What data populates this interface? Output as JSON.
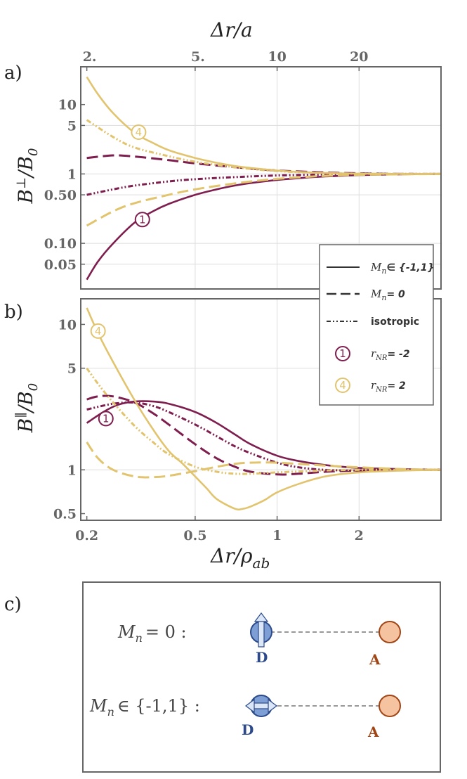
{
  "panels": {
    "a": "a)",
    "b": "b)",
    "c": "c)"
  },
  "colors": {
    "purple": "#7e1e4e",
    "gold": "#e2c46e",
    "frame": "#666666",
    "grid": "#dddddd",
    "donor": "#2c4a8a",
    "donor_fill": "#7d9fd6",
    "acceptor": "#a04515",
    "acceptor_fill": "#f6c3a0"
  },
  "chart_data": [
    {
      "id": "panel_a",
      "type": "line",
      "title": "",
      "xlabel": "Δr/ρ_ab",
      "top_xlabel": "Δr/a",
      "ylabel": "B⊥/B0",
      "xscale": "log",
      "yscale": "log",
      "xlim": [
        0.19,
        4.0
      ],
      "ylim": [
        0.022,
        35
      ],
      "top_ticks": [
        {
          "label": "2.",
          "x": 0.2
        },
        {
          "label": "5.",
          "x": 0.5
        },
        {
          "label": "10",
          "x": 1.0
        },
        {
          "label": "20",
          "x": 2.0
        }
      ],
      "ytick_labels": [
        "10",
        "5",
        "1",
        "0.50",
        "0.10",
        "0.05"
      ],
      "yticks": [
        10,
        5,
        1,
        0.5,
        0.1,
        0.05
      ],
      "x_grid": [
        0.5,
        1,
        2
      ],
      "y_grid": [
        5,
        1,
        0.5,
        0.1,
        0.05
      ],
      "series": [
        {
          "name": "M_n ∈ {-1,1}, r_NR = -2",
          "color": "purple",
          "dash": "solid",
          "x": [
            0.2,
            0.22,
            0.25,
            0.3,
            0.35,
            0.4,
            0.5,
            0.6,
            0.7,
            0.8,
            1.0,
            1.2,
            1.5,
            2.0,
            3.0,
            4.0
          ],
          "y": [
            0.03,
            0.055,
            0.1,
            0.2,
            0.29,
            0.37,
            0.5,
            0.6,
            0.68,
            0.74,
            0.82,
            0.87,
            0.92,
            0.96,
            0.99,
            1.0
          ]
        },
        {
          "name": "M_n = 0, r_NR = -2",
          "color": "purple",
          "dash": "dash",
          "x": [
            0.2,
            0.25,
            0.3,
            0.4,
            0.5,
            0.7,
            1.0,
            1.5,
            2.0,
            3.0,
            4.0
          ],
          "y": [
            1.7,
            1.85,
            1.78,
            1.58,
            1.42,
            1.25,
            1.12,
            1.05,
            1.02,
            1.0,
            1.0
          ]
        },
        {
          "name": "isotropic, r_NR = -2",
          "color": "purple",
          "dash": "dashdot",
          "x": [
            0.2,
            0.25,
            0.3,
            0.4,
            0.5,
            0.7,
            1.0,
            1.5,
            2.0,
            3.0,
            4.0
          ],
          "y": [
            0.5,
            0.6,
            0.68,
            0.78,
            0.84,
            0.9,
            0.95,
            0.98,
            0.99,
            1.0,
            1.0
          ]
        },
        {
          "name": "M_n ∈ {-1,1}, r_NR = 2",
          "color": "gold",
          "dash": "solid",
          "x": [
            0.2,
            0.22,
            0.25,
            0.3,
            0.35,
            0.4,
            0.5,
            0.6,
            0.7,
            0.8,
            1.0,
            1.2,
            1.5,
            2.0,
            3.0,
            4.0
          ],
          "y": [
            25,
            14,
            7.5,
            3.9,
            2.8,
            2.2,
            1.7,
            1.45,
            1.3,
            1.22,
            1.12,
            1.07,
            1.03,
            1.01,
            1.0,
            1.0
          ]
        },
        {
          "name": "M_n = 0, r_NR = 2",
          "color": "gold",
          "dash": "dash",
          "x": [
            0.2,
            0.25,
            0.3,
            0.4,
            0.5,
            0.7,
            1.0,
            1.5,
            2.0,
            3.0,
            4.0
          ],
          "y": [
            0.18,
            0.29,
            0.38,
            0.5,
            0.6,
            0.73,
            0.85,
            0.94,
            0.97,
            0.99,
            1.0
          ]
        },
        {
          "name": "isotropic, r_NR = 2",
          "color": "gold",
          "dash": "dashdot",
          "x": [
            0.2,
            0.25,
            0.3,
            0.4,
            0.5,
            0.7,
            1.0,
            1.5,
            2.0,
            3.0,
            4.0
          ],
          "y": [
            6.0,
            3.4,
            2.4,
            1.8,
            1.5,
            1.25,
            1.1,
            1.03,
            1.01,
            1.0,
            1.0
          ]
        }
      ],
      "markers": [
        {
          "label": "1",
          "color": "purple",
          "x": 0.32,
          "y": 0.22
        },
        {
          "label": "4",
          "color": "gold",
          "x": 0.31,
          "y": 4.0
        }
      ]
    },
    {
      "id": "panel_b",
      "type": "line",
      "title": "",
      "xlabel": "Δr/ρ_ab",
      "ylabel": "B∥/B0",
      "xscale": "log",
      "yscale": "log",
      "xlim": [
        0.19,
        4.0
      ],
      "ylim": [
        0.45,
        15
      ],
      "xtick_labels": [
        "0.2",
        "0.5",
        "1",
        "2"
      ],
      "xticks": [
        0.2,
        0.5,
        1,
        2
      ],
      "ytick_labels": [
        "10",
        "5",
        "1",
        "0.5"
      ],
      "yticks": [
        10,
        5,
        1,
        0.5
      ],
      "x_grid": [
        0.5,
        1,
        2
      ],
      "y_grid": [
        5,
        1
      ],
      "series": [
        {
          "name": "M_n ∈ {-1,1}, r_NR = -2",
          "color": "purple",
          "dash": "solid",
          "x": [
            0.2,
            0.23,
            0.26,
            0.3,
            0.35,
            0.4,
            0.5,
            0.6,
            0.7,
            0.8,
            1.0,
            1.2,
            1.5,
            2.0,
            3.0,
            4.0
          ],
          "y": [
            2.1,
            2.5,
            2.8,
            2.95,
            2.95,
            2.85,
            2.5,
            2.1,
            1.75,
            1.5,
            1.25,
            1.15,
            1.08,
            1.03,
            1.01,
            1.0
          ]
        },
        {
          "name": "M_n = 0, r_NR = -2",
          "color": "purple",
          "dash": "dash",
          "x": [
            0.2,
            0.22,
            0.25,
            0.3,
            0.35,
            0.4,
            0.5,
            0.6,
            0.7,
            0.8,
            1.0,
            1.2,
            1.5,
            2.0,
            3.0,
            4.0
          ],
          "y": [
            3.05,
            3.2,
            3.2,
            2.9,
            2.45,
            2.05,
            1.5,
            1.2,
            1.05,
            0.97,
            0.93,
            0.94,
            0.97,
            0.99,
            1.0,
            1.0
          ]
        },
        {
          "name": "isotropic, r_NR = -2",
          "color": "purple",
          "dash": "dashdot",
          "x": [
            0.2,
            0.25,
            0.3,
            0.35,
            0.4,
            0.5,
            0.6,
            0.7,
            0.8,
            1.0,
            1.2,
            1.5,
            2.0,
            3.0,
            4.0
          ],
          "y": [
            2.6,
            2.85,
            2.9,
            2.75,
            2.5,
            2.05,
            1.7,
            1.45,
            1.3,
            1.12,
            1.04,
            1.0,
            0.99,
            1.0,
            1.0
          ]
        },
        {
          "name": "M_n ∈ {-1,1}, r_NR = 2",
          "color": "gold",
          "dash": "solid",
          "x": [
            0.2,
            0.22,
            0.25,
            0.3,
            0.35,
            0.4,
            0.45,
            0.5,
            0.55,
            0.6,
            0.7,
            0.75,
            0.8,
            0.9,
            1.0,
            1.2,
            1.5,
            2.0,
            3.0,
            4.0
          ],
          "y": [
            13,
            8.7,
            5.5,
            3.0,
            1.9,
            1.35,
            1.1,
            0.9,
            0.75,
            0.63,
            0.54,
            0.54,
            0.56,
            0.62,
            0.7,
            0.8,
            0.9,
            0.96,
            0.99,
            1.0
          ]
        },
        {
          "name": "M_n = 0, r_NR = 2",
          "color": "gold",
          "dash": "dash",
          "x": [
            0.2,
            0.22,
            0.25,
            0.3,
            0.35,
            0.4,
            0.5,
            0.6,
            0.7,
            0.8,
            1.0,
            1.5,
            2.0,
            3.0,
            4.0
          ],
          "y": [
            1.55,
            1.2,
            1.0,
            0.9,
            0.89,
            0.91,
            0.98,
            1.05,
            1.1,
            1.12,
            1.12,
            1.07,
            1.04,
            1.01,
            1.0
          ]
        },
        {
          "name": "isotropic, r_NR = 2",
          "color": "gold",
          "dash": "dashdot",
          "x": [
            0.2,
            0.22,
            0.25,
            0.3,
            0.35,
            0.4,
            0.5,
            0.6,
            0.7,
            0.8,
            1.0,
            1.5,
            2.0,
            3.0,
            4.0
          ],
          "y": [
            5.0,
            3.9,
            2.9,
            2.0,
            1.55,
            1.28,
            1.05,
            0.97,
            0.94,
            0.94,
            0.96,
            0.99,
            1.0,
            1.0,
            1.0
          ]
        }
      ],
      "markers": [
        {
          "label": "1",
          "color": "purple",
          "x": 0.235,
          "y": 2.25
        },
        {
          "label": "4",
          "color": "gold",
          "x": 0.22,
          "y": 9.0
        }
      ]
    }
  ],
  "legend": {
    "entries": [
      {
        "label": "M_n ∈ {-1,1}",
        "style": "solid"
      },
      {
        "label": "M_n = 0",
        "style": "dash"
      },
      {
        "label": "isotropic",
        "style": "dashdot"
      },
      {
        "label": "r_NR = -2",
        "marker": "1",
        "color": "purple"
      },
      {
        "label": "r_NR = 2",
        "marker": "4",
        "color": "gold"
      }
    ],
    "text": {
      "solid_main": "M",
      "solid_sub": "n",
      "solid_rest": "∈ {-1,1}",
      "dash_main": "M",
      "dash_sub": "n",
      "dash_rest": "= 0",
      "iso": "isotropic",
      "r_main": "r",
      "r_sub": "NR",
      "r_neg": "= -2",
      "r_pos": "= 2",
      "m1": "1",
      "m4": "4"
    }
  },
  "axes_text": {
    "top_title_main": "Δr",
    "top_title_rest": "/a",
    "a_ylabel_main": "B",
    "a_ylabel_sup": "⊥",
    "a_ylabel_rest": "/B",
    "a_ylabel_sub": "0",
    "b_ylabel_main": "B",
    "b_ylabel_sup": "∥",
    "b_ylabel_rest": "/B",
    "b_ylabel_sub": "0",
    "x_title_main": "Δr",
    "x_title_rest": "/ρ",
    "x_title_sub": "ab"
  },
  "diagram": {
    "row1": {
      "label_main": "M",
      "label_sub": "n",
      "label_rest": "= 0 :",
      "donor": "D",
      "acceptor": "A",
      "dipole": "vertical"
    },
    "row2": {
      "label_main": "M",
      "label_sub": "n",
      "label_rest": "∈ {-1,1} :",
      "donor": "D",
      "acceptor": "A",
      "dipole": "horizontal"
    }
  }
}
